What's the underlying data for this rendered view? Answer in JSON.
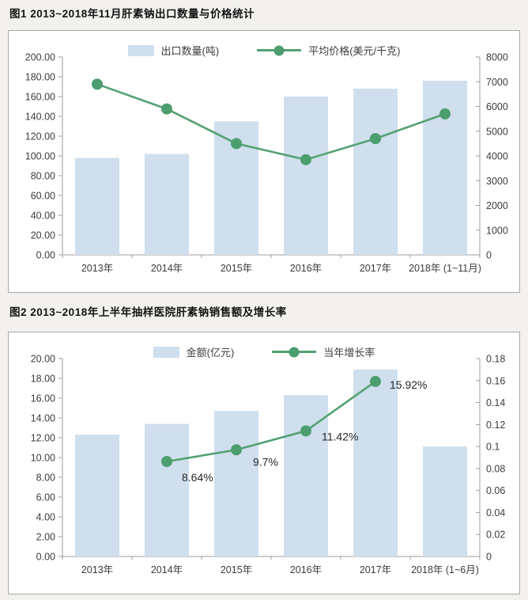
{
  "colors": {
    "page_bg": "#f2f1ee",
    "panel_bg": "#ffffff",
    "panel_border": "#a9a9a9",
    "bar_fill": "#cfdfee",
    "line_stroke": "#54a173",
    "marker_fill": "#4c9e6e",
    "axis_line": "#9e9e9e",
    "tick_text": "#3c3c3c",
    "title_text": "#141414",
    "point_label_text": "#262626"
  },
  "figures": [
    {
      "id": "figure1",
      "title": "图1  2013~2018年11月肝素钠出口数量与价格统计",
      "legend": [
        {
          "type": "bar",
          "label": "出口数量(吨)"
        },
        {
          "type": "line",
          "label": "平均价格(美元/千克)"
        }
      ]
    },
    {
      "id": "figure2",
      "title": "图2  2013~2018年上半年抽样医院肝素钠销售额及增长率",
      "legend": [
        {
          "type": "bar",
          "label": "金额(亿元)"
        },
        {
          "type": "line",
          "label": "当年增长率"
        }
      ]
    }
  ],
  "chart_data": [
    {
      "type": "bar",
      "subtype": "bar+line-dual-axis",
      "title": "2013~2018年11月肝素钠出口数量与价格统计",
      "categories": [
        "2013年",
        "2014年",
        "2015年",
        "2016年",
        "2017年",
        "2018年 (1~11月)"
      ],
      "series": [
        {
          "name": "出口数量(吨)",
          "type": "bar",
          "axis": "left",
          "values": [
            98,
            102,
            135,
            160,
            168,
            176
          ]
        },
        {
          "name": "平均价格(美元/千克)",
          "type": "line",
          "axis": "right",
          "values": [
            6900,
            5900,
            4500,
            3850,
            4700,
            5700
          ]
        }
      ],
      "left_axis": {
        "min": 0,
        "max": 200,
        "ticks": [
          "200.00",
          "180.00",
          "160.00",
          "140.00",
          "120.00",
          "100.00",
          "80.00",
          "60.00",
          "40.00",
          "20.00",
          "0.00"
        ]
      },
      "right_axis": {
        "min": 0,
        "max": 8000,
        "ticks": [
          "8000",
          "7000",
          "6000",
          "5000",
          "4000",
          "3000",
          "2000",
          "1000",
          "0"
        ]
      },
      "grid": false,
      "legend_position": "top"
    },
    {
      "type": "bar",
      "subtype": "bar+line-dual-axis",
      "title": "2013~2018年上半年抽样医院肝素钠销售额及增长率",
      "categories": [
        "2013年",
        "2014年",
        "2015年",
        "2016年",
        "2017年",
        "2018年 (1~6月)"
      ],
      "series": [
        {
          "name": "金额(亿元)",
          "type": "bar",
          "axis": "left",
          "values": [
            12.3,
            13.4,
            14.7,
            16.3,
            18.9,
            11.1
          ]
        },
        {
          "name": "当年增长率",
          "type": "line",
          "axis": "right",
          "values": [
            null,
            0.0864,
            0.097,
            0.1142,
            0.1592,
            null
          ],
          "point_labels": [
            null,
            "8.64%",
            "9.7%",
            "11.42%",
            "15.92%",
            null
          ],
          "label_offsets": [
            null,
            [
              19,
              25
            ],
            [
              21,
              20
            ],
            [
              20,
              12
            ],
            [
              18,
              9
            ],
            null
          ]
        }
      ],
      "left_axis": {
        "min": 0,
        "max": 20,
        "ticks": [
          "20.00",
          "18.00",
          "16.00",
          "14.00",
          "12.00",
          "10.00",
          "8.00",
          "6.00",
          "4.00",
          "2.00",
          "0.00"
        ]
      },
      "right_axis": {
        "min": 0,
        "max": 0.18,
        "ticks": [
          "0.18",
          "0.16",
          "0.14",
          "0.12",
          "0.1",
          "0.08",
          "0.06",
          "0.04",
          "0.02",
          "0"
        ]
      },
      "grid": false,
      "legend_position": "top"
    }
  ]
}
